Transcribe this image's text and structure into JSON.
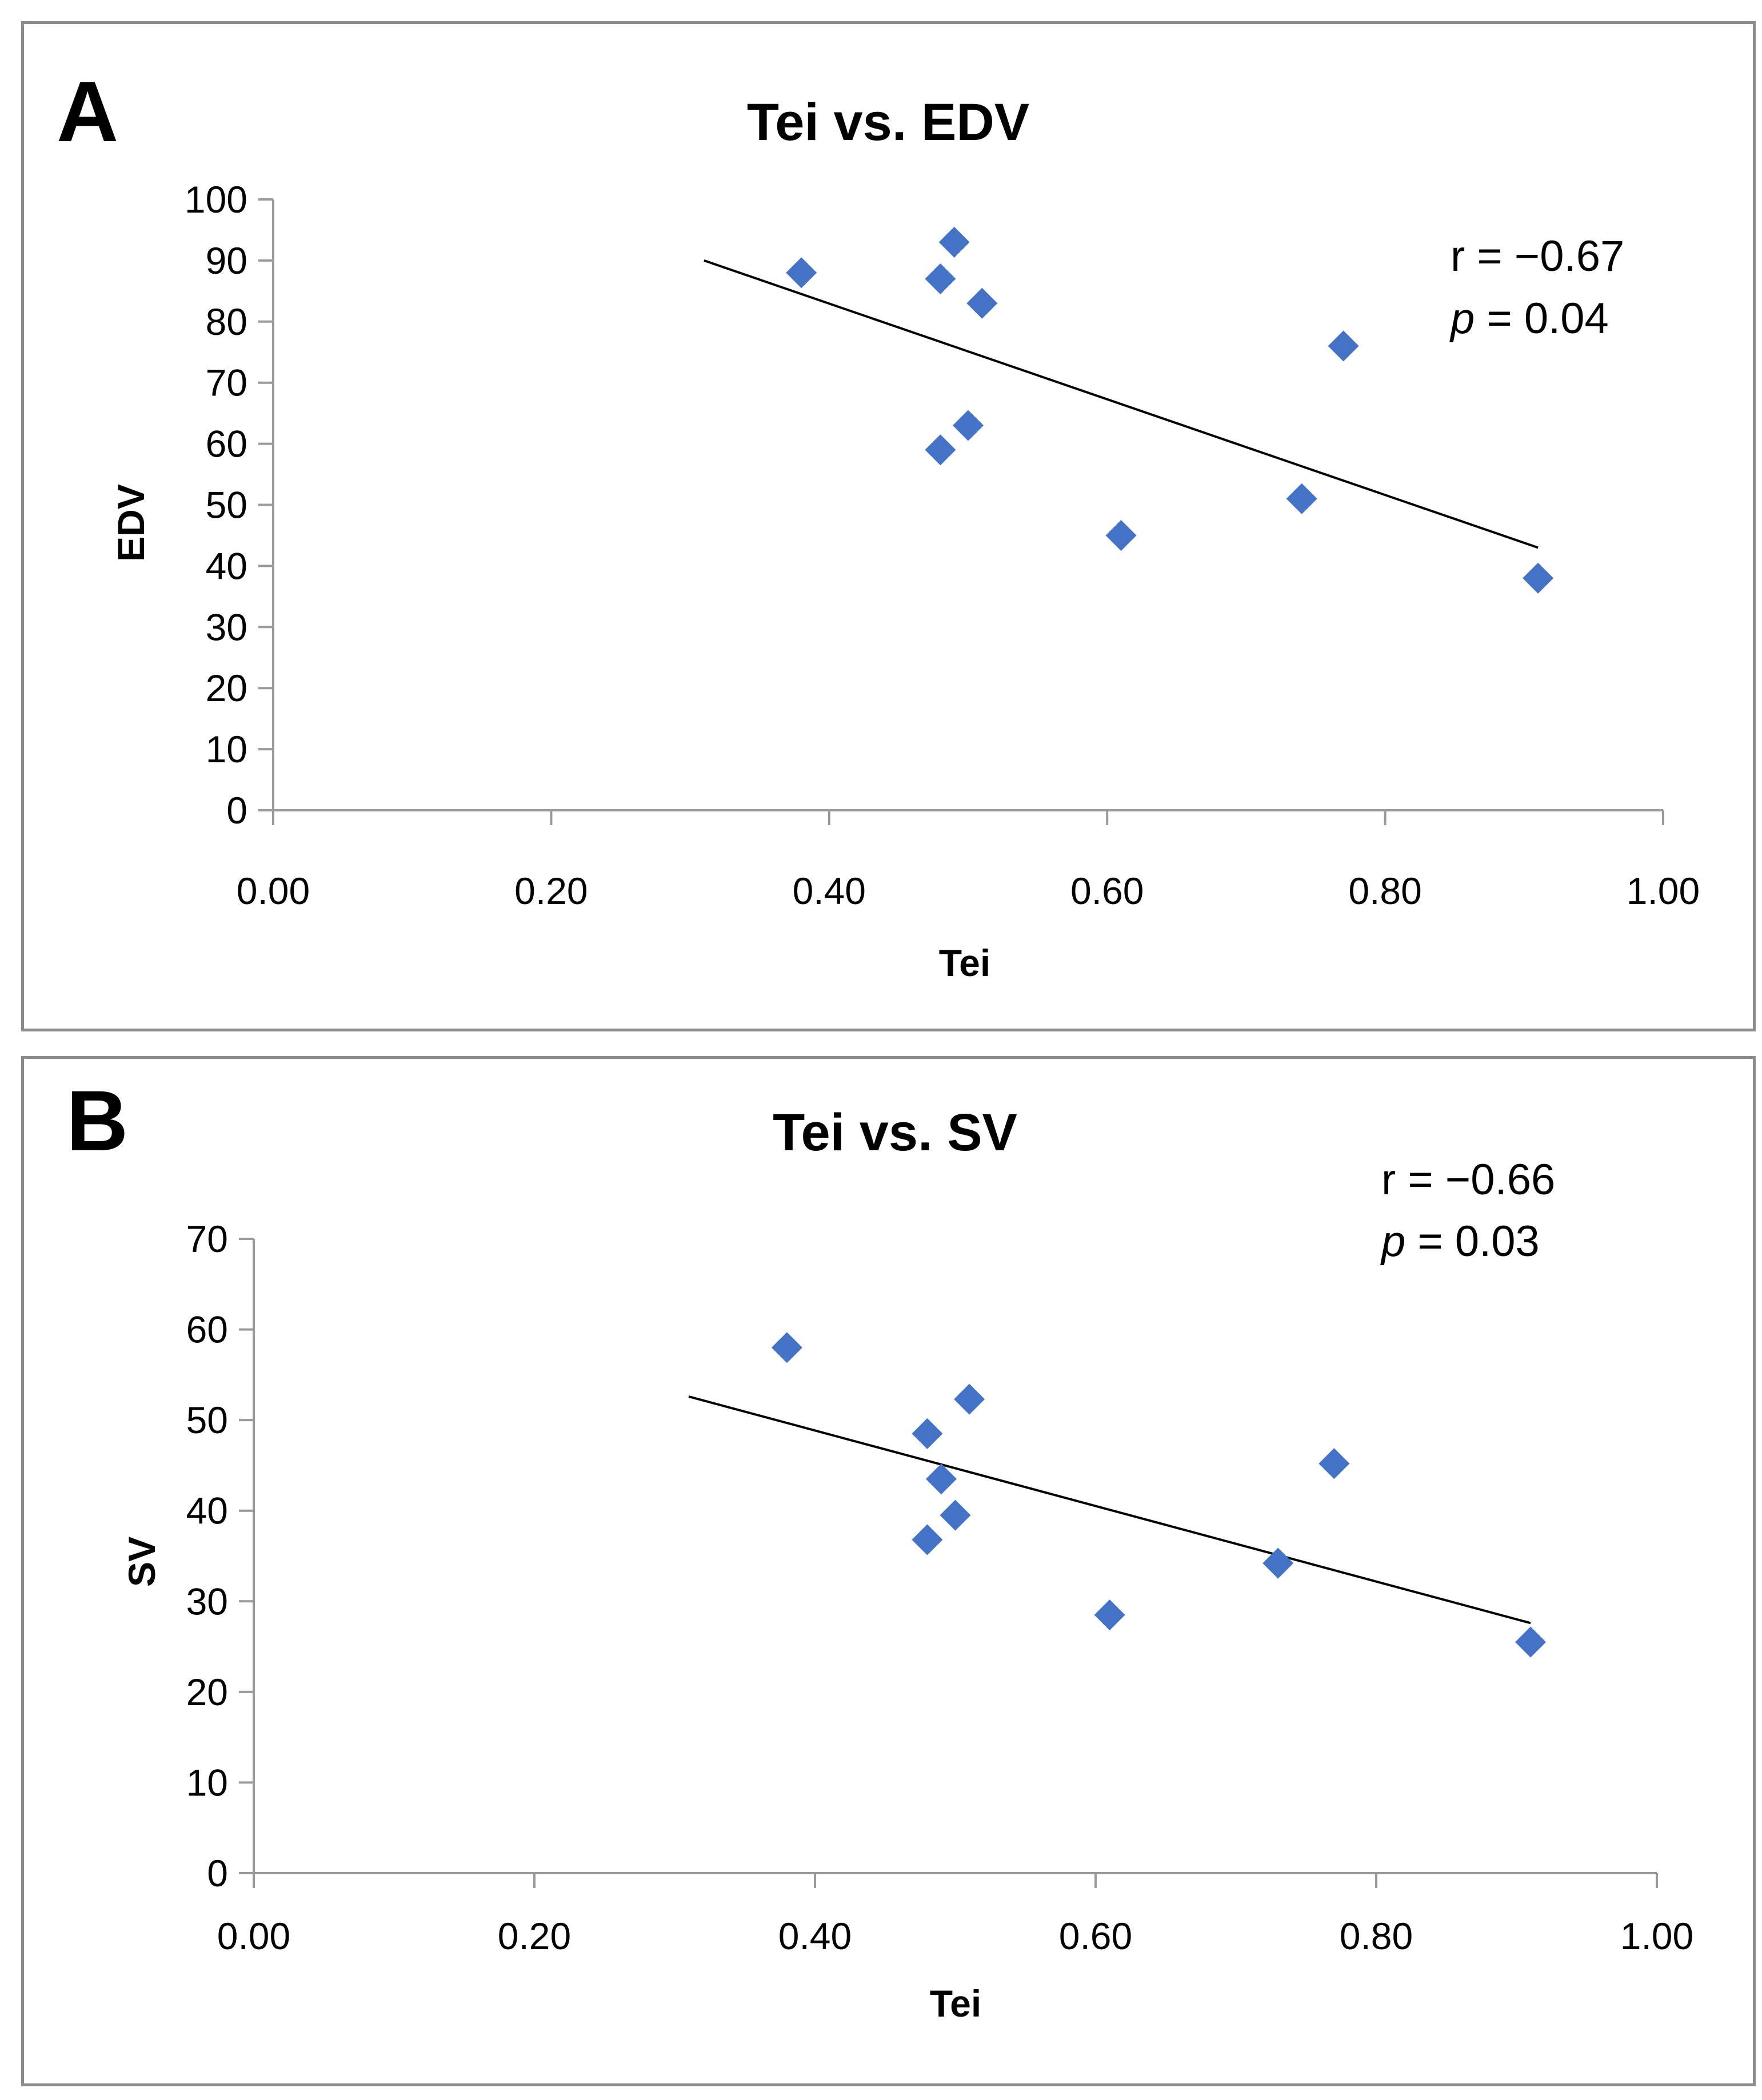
{
  "chart_data": [
    {
      "panel_label": "A",
      "type": "scatter",
      "title": "Tei vs. EDV",
      "xlabel": "Tei",
      "ylabel": "EDV",
      "xlim": [
        0,
        1
      ],
      "ylim": [
        0,
        100
      ],
      "x_ticks": [
        "0.00",
        "0.20",
        "0.40",
        "0.60",
        "0.80",
        "1.00"
      ],
      "y_ticks": [
        "0",
        "10",
        "20",
        "30",
        "40",
        "50",
        "60",
        "70",
        "80",
        "90",
        "100"
      ],
      "points": [
        {
          "x": 0.38,
          "y": 88
        },
        {
          "x": 0.48,
          "y": 87
        },
        {
          "x": 0.49,
          "y": 93
        },
        {
          "x": 0.51,
          "y": 83
        },
        {
          "x": 0.5,
          "y": 63
        },
        {
          "x": 0.48,
          "y": 59
        },
        {
          "x": 0.61,
          "y": 45
        },
        {
          "x": 0.74,
          "y": 51
        },
        {
          "x": 0.77,
          "y": 76
        },
        {
          "x": 0.91,
          "y": 38
        }
      ],
      "trendline": {
        "x": [
          0.31,
          0.91
        ],
        "y": [
          90,
          43
        ]
      },
      "annotation": {
        "r": "r = −0.67",
        "p_symbol": "p",
        "p_rest": " = 0.04"
      },
      "marker_color": "#4472c4",
      "grid": false
    },
    {
      "panel_label": "B",
      "type": "scatter",
      "title": "Tei vs. SV",
      "xlabel": "Tei",
      "ylabel": "SV",
      "xlim": [
        0,
        1
      ],
      "ylim": [
        0,
        70
      ],
      "x_ticks": [
        "0.00",
        "0.20",
        "0.40",
        "0.60",
        "0.80",
        "1.00"
      ],
      "y_ticks": [
        "0",
        "10",
        "20",
        "30",
        "40",
        "50",
        "60",
        "70"
      ],
      "points": [
        {
          "x": 0.38,
          "y": 58
        },
        {
          "x": 0.48,
          "y": 48.5
        },
        {
          "x": 0.51,
          "y": 52.3
        },
        {
          "x": 0.49,
          "y": 43.5
        },
        {
          "x": 0.5,
          "y": 39.5
        },
        {
          "x": 0.48,
          "y": 36.8
        },
        {
          "x": 0.61,
          "y": 28.5
        },
        {
          "x": 0.73,
          "y": 34.2
        },
        {
          "x": 0.77,
          "y": 45.2
        },
        {
          "x": 0.91,
          "y": 25.5
        }
      ],
      "trendline": {
        "x": [
          0.31,
          0.91
        ],
        "y": [
          52.6,
          27.6
        ]
      },
      "annotation": {
        "r": "r = −0.66",
        "p_symbol": "p",
        "p_rest": " = 0.03"
      },
      "marker_color": "#4472c4",
      "grid": false
    }
  ]
}
